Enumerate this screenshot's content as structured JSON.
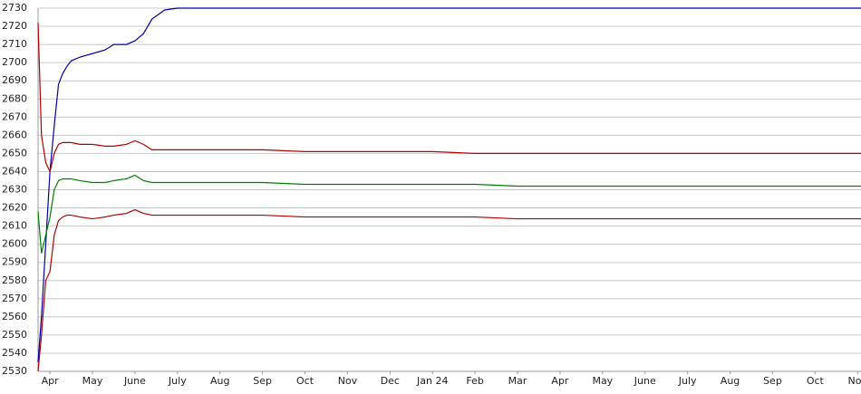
{
  "chart_data": {
    "type": "line",
    "x": [
      -0.28,
      -0.2,
      -0.1,
      0,
      0.1,
      0.2,
      0.3,
      0.4,
      0.5,
      0.7,
      1,
      1.3,
      1.5,
      1.8,
      2,
      2.2,
      2.4,
      2.7,
      3,
      3.5,
      4,
      5,
      6,
      7,
      8,
      9,
      10,
      11,
      12,
      13,
      14,
      15,
      16,
      17,
      18,
      19.08
    ],
    "series": [
      {
        "color": "#0000a8",
        "values": [
          2535,
          2560,
          2600,
          2640,
          2665,
          2688,
          2694,
          2698,
          2701,
          2703,
          2705,
          2707,
          2710,
          2710,
          2712,
          2716,
          2724,
          2729,
          2730,
          2730,
          2730,
          2730,
          2730,
          2730,
          2730,
          2730,
          2730,
          2730,
          2730,
          2730,
          2730,
          2730,
          2730,
          2730,
          2730,
          2730
        ]
      },
      {
        "color": "#b00000",
        "values": [
          2722,
          2660,
          2645,
          2640,
          2650,
          2655,
          2656,
          2656,
          2656,
          2655,
          2655,
          2654,
          2654,
          2655,
          2657,
          2655,
          2652,
          2652,
          2652,
          2652,
          2652,
          2652,
          2651,
          2651,
          2651,
          2651,
          2650,
          2650,
          2650,
          2650,
          2650,
          2650,
          2650,
          2650,
          2650,
          2650
        ]
      },
      {
        "color": "#008000",
        "values": [
          2618,
          2595,
          2605,
          2615,
          2630,
          2635,
          2636,
          2636,
          2636,
          2635,
          2634,
          2634,
          2635,
          2636,
          2638,
          2635,
          2634,
          2634,
          2634,
          2634,
          2634,
          2634,
          2633,
          2633,
          2633,
          2633,
          2633,
          2632,
          2632,
          2632,
          2632,
          2632,
          2632,
          2632,
          2632,
          2632
        ]
      },
      {
        "color": "#b00000",
        "values": [
          2530,
          2550,
          2580,
          2585,
          2605,
          2613,
          2615,
          2616,
          2616,
          2615,
          2614,
          2615,
          2616,
          2617,
          2619,
          2617,
          2616,
          2616,
          2616,
          2616,
          2616,
          2616,
          2615,
          2615,
          2615,
          2615,
          2615,
          2614,
          2614,
          2614,
          2614,
          2614,
          2614,
          2614,
          2614,
          2614
        ]
      }
    ],
    "xlim": [
      -0.28,
      19.08
    ],
    "xticks": [
      {
        "value": 0,
        "label": "Apr"
      },
      {
        "value": 1,
        "label": "May"
      },
      {
        "value": 2,
        "label": "June"
      },
      {
        "value": 3,
        "label": "July"
      },
      {
        "value": 4,
        "label": "Aug"
      },
      {
        "value": 5,
        "label": "Sep"
      },
      {
        "value": 6,
        "label": "Oct"
      },
      {
        "value": 7,
        "label": "Nov"
      },
      {
        "value": 8,
        "label": "Dec"
      },
      {
        "value": 9,
        "label": "Jan 24"
      },
      {
        "value": 10,
        "label": "Feb"
      },
      {
        "value": 11,
        "label": "Mar"
      },
      {
        "value": 12,
        "label": "Apr"
      },
      {
        "value": 13,
        "label": "May"
      },
      {
        "value": 14,
        "label": "June"
      },
      {
        "value": 15,
        "label": "July"
      },
      {
        "value": 16,
        "label": "Aug"
      },
      {
        "value": 17,
        "label": "Sep"
      },
      {
        "value": 18,
        "label": "Oct"
      },
      {
        "value": 19,
        "label": "Nov"
      }
    ],
    "ylim": [
      2530,
      2730
    ],
    "yticks": [
      2530,
      2540,
      2550,
      2560,
      2570,
      2580,
      2590,
      2600,
      2610,
      2620,
      2630,
      2640,
      2650,
      2660,
      2670,
      2680,
      2690,
      2700,
      2710,
      2720,
      2730
    ],
    "grid": true
  }
}
